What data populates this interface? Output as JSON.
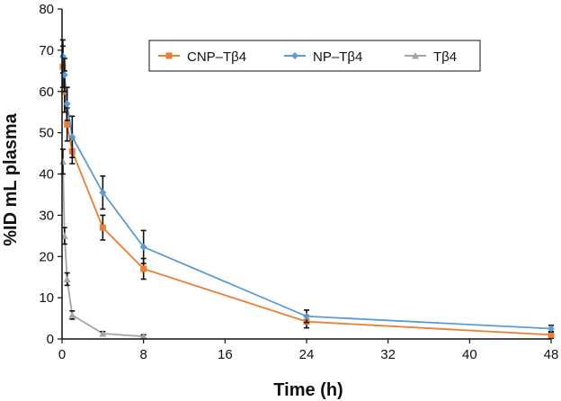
{
  "chart_data": {
    "type": "line",
    "xlabel": "Time (h)",
    "ylabel": "%ID mL plasma",
    "xlim": [
      0,
      48
    ],
    "ylim": [
      0,
      80
    ],
    "xticks": [
      0,
      8,
      16,
      24,
      32,
      40,
      48
    ],
    "yticks": [
      0,
      10,
      20,
      30,
      40,
      50,
      60,
      70,
      80
    ],
    "grid": false,
    "legend_position": "top-right",
    "series": [
      {
        "name": "CNP–Tβ4",
        "color": "#ED7D31",
        "marker": "square",
        "x": [
          0.083,
          0.25,
          0.5,
          1,
          4,
          8,
          24,
          48
        ],
        "y": [
          66,
          60,
          52,
          45.5,
          27,
          17,
          4.2,
          1
        ],
        "err": [
          5,
          5,
          4,
          3,
          3,
          2.5,
          1.5,
          0.8
        ]
      },
      {
        "name": "NP–Tβ4",
        "color": "#5B9BD5",
        "marker": "diamond",
        "x": [
          0.083,
          0.25,
          0.5,
          1,
          4,
          8,
          24,
          48
        ],
        "y": [
          68.5,
          64,
          57,
          49,
          35.5,
          22.3,
          5.5,
          2.5
        ],
        "err": [
          4,
          4,
          4,
          5,
          4,
          4,
          1.5,
          0.8
        ]
      },
      {
        "name": "Tβ4",
        "color": "#A5A5A5",
        "marker": "triangle",
        "x": [
          0.083,
          0.25,
          0.5,
          1,
          4,
          8
        ],
        "y": [
          43,
          25,
          14.5,
          5.8,
          1.3,
          0.6
        ],
        "err": [
          3,
          2,
          1.5,
          1,
          0.5,
          0.4
        ]
      }
    ]
  }
}
